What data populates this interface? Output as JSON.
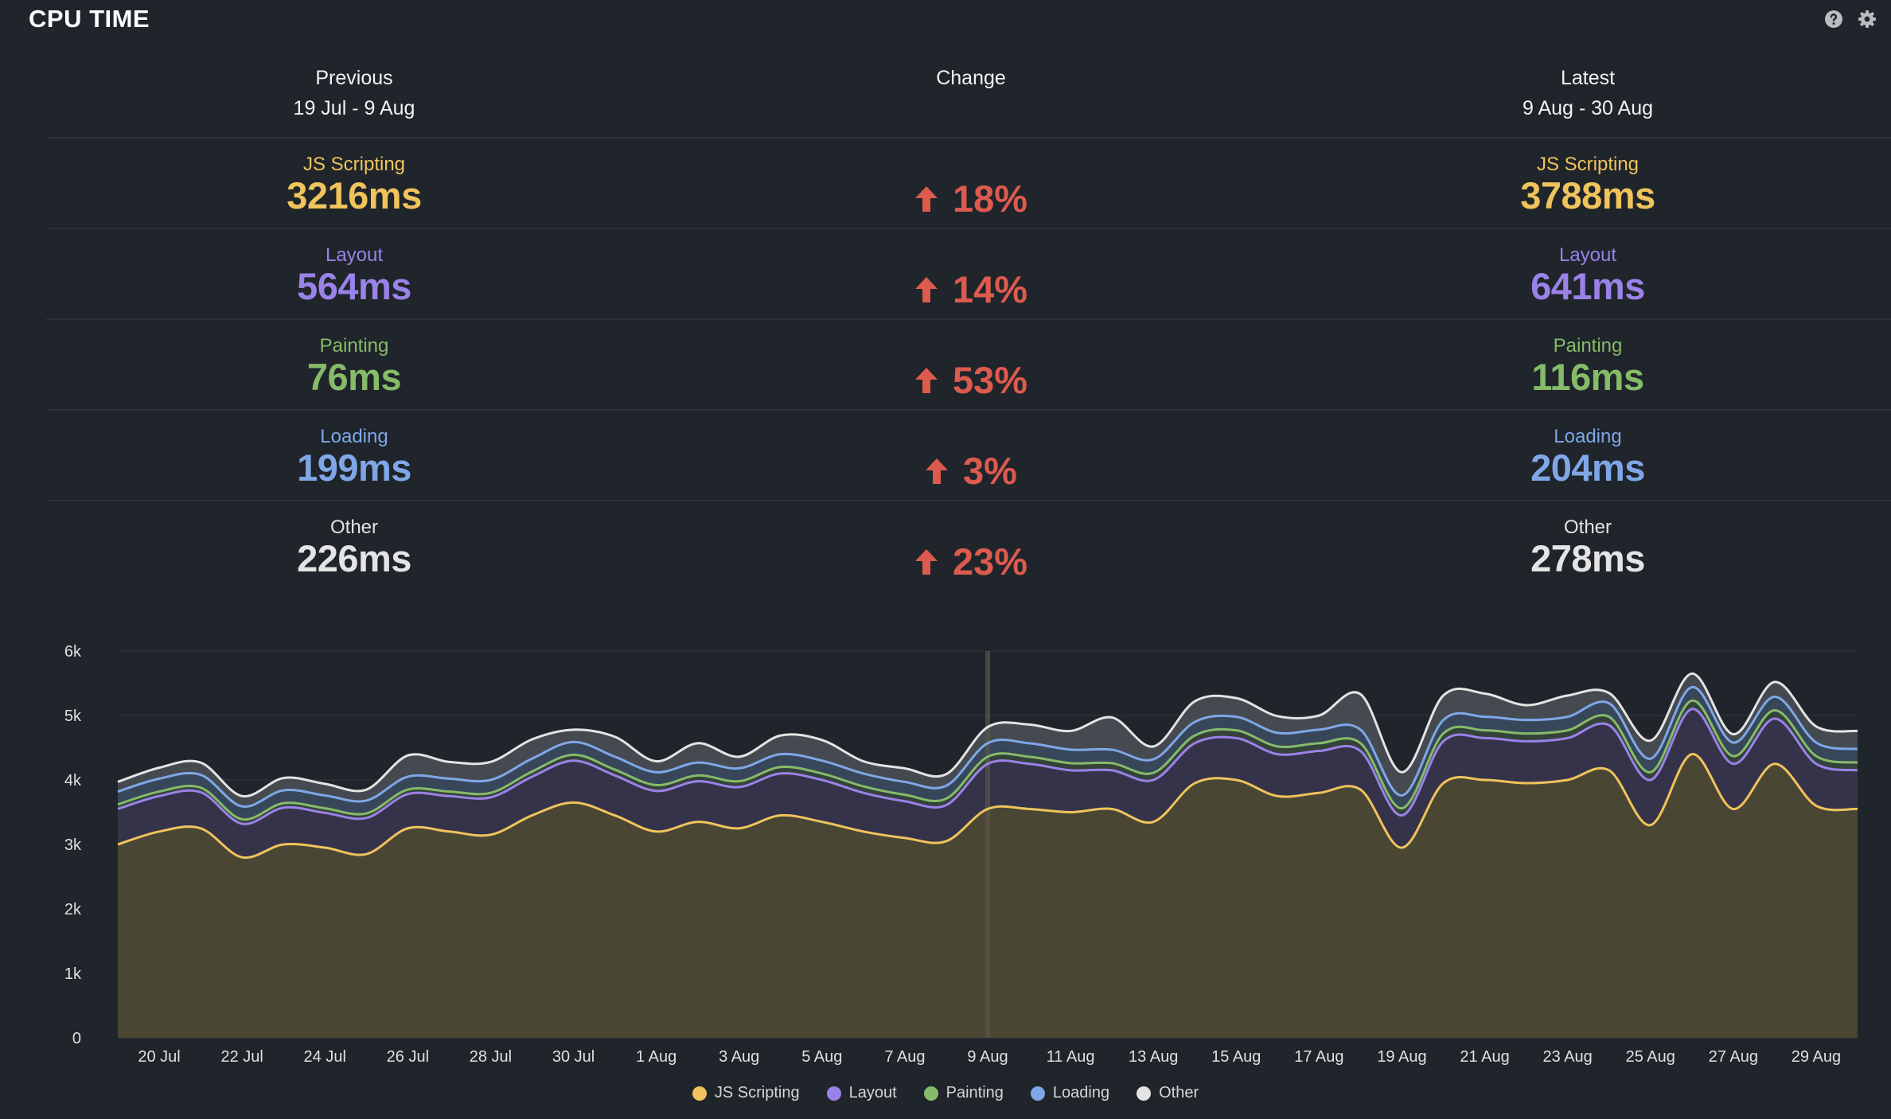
{
  "header": {
    "title": "CPU TIME",
    "help_icon": "help-icon",
    "settings_icon": "gear-icon"
  },
  "summary": {
    "previous_label": "Previous",
    "previous_range": "19 Jul - 9 Aug",
    "change_label": "Change",
    "latest_label": "Latest",
    "latest_range": "9 Aug - 30 Aug",
    "metrics": [
      {
        "name": "JS Scripting",
        "previous": "3216ms",
        "change": "18%",
        "latest": "3788ms",
        "color": "#f0c35c",
        "direction": "up"
      },
      {
        "name": "Layout",
        "previous": "564ms",
        "change": "14%",
        "latest": "641ms",
        "color": "#9a82e8",
        "direction": "up"
      },
      {
        "name": "Painting",
        "previous": "76ms",
        "change": "53%",
        "latest": "116ms",
        "color": "#86bb6a",
        "direction": "up"
      },
      {
        "name": "Loading",
        "previous": "199ms",
        "change": "3%",
        "latest": "204ms",
        "color": "#7fa7e8",
        "direction": "up"
      },
      {
        "name": "Other",
        "previous": "226ms",
        "change": "23%",
        "latest": "278ms",
        "color": "#e4e4e4",
        "direction": "up"
      }
    ],
    "change_color": "#dd5a4f"
  },
  "chart_data": {
    "type": "area",
    "stacked": true,
    "x": [
      "19 Jul",
      "20 Jul",
      "21 Jul",
      "22 Jul",
      "23 Jul",
      "24 Jul",
      "25 Jul",
      "26 Jul",
      "27 Jul",
      "28 Jul",
      "29 Jul",
      "30 Jul",
      "31 Jul",
      "1 Aug",
      "2 Aug",
      "3 Aug",
      "4 Aug",
      "5 Aug",
      "6 Aug",
      "7 Aug",
      "8 Aug",
      "9 Aug",
      "10 Aug",
      "11 Aug",
      "12 Aug",
      "13 Aug",
      "14 Aug",
      "15 Aug",
      "16 Aug",
      "17 Aug",
      "18 Aug",
      "19 Aug",
      "20 Aug",
      "21 Aug",
      "22 Aug",
      "23 Aug",
      "24 Aug",
      "25 Aug",
      "26 Aug",
      "27 Aug",
      "28 Aug",
      "29 Aug",
      "30 Aug"
    ],
    "x_tick_labels": [
      "20 Jul",
      "22 Jul",
      "24 Jul",
      "26 Jul",
      "28 Jul",
      "30 Jul",
      "1 Aug",
      "3 Aug",
      "5 Aug",
      "7 Aug",
      "9 Aug",
      "11 Aug",
      "13 Aug",
      "15 Aug",
      "17 Aug",
      "19 Aug",
      "21 Aug",
      "23 Aug",
      "25 Aug",
      "27 Aug",
      "29 Aug"
    ],
    "y_tick_labels": [
      "0",
      "1k",
      "2k",
      "3k",
      "4k",
      "5k",
      "6k"
    ],
    "ylim": [
      0,
      6000
    ],
    "period_divider_x": "9 Aug",
    "series": [
      {
        "name": "JS Scripting",
        "color": "#f0c35c",
        "values": [
          3000,
          3200,
          3250,
          2800,
          3000,
          2950,
          2850,
          3250,
          3200,
          3150,
          3450,
          3650,
          3450,
          3200,
          3350,
          3250,
          3450,
          3350,
          3200,
          3100,
          3050,
          3550,
          3550,
          3500,
          3550,
          3350,
          3950,
          4000,
          3750,
          3800,
          3850,
          2950,
          3950,
          4000,
          3950,
          4000,
          4150,
          3300,
          4400,
          3550,
          4250,
          3600,
          3550
        ]
      },
      {
        "name": "Layout",
        "color": "#9a82e8",
        "values": [
          550,
          550,
          560,
          520,
          570,
          540,
          560,
          530,
          550,
          580,
          600,
          650,
          620,
          630,
          630,
          640,
          650,
          650,
          600,
          570,
          560,
          700,
          700,
          650,
          600,
          650,
          620,
          650,
          650,
          650,
          600,
          500,
          650,
          650,
          650,
          650,
          700,
          700,
          700,
          700,
          700,
          650,
          600
        ]
      },
      {
        "name": "Painting",
        "color": "#86bb6a",
        "values": [
          70,
          70,
          70,
          70,
          70,
          70,
          70,
          70,
          70,
          70,
          80,
          90,
          90,
          90,
          90,
          90,
          100,
          100,
          100,
          100,
          100,
          110,
          110,
          110,
          110,
          110,
          120,
          120,
          120,
          120,
          120,
          110,
          120,
          120,
          120,
          120,
          130,
          120,
          130,
          120,
          130,
          120,
          120
        ]
      },
      {
        "name": "Loading",
        "color": "#7fa7e8",
        "values": [
          200,
          200,
          200,
          200,
          200,
          200,
          200,
          200,
          200,
          200,
          200,
          200,
          200,
          200,
          200,
          200,
          200,
          200,
          200,
          200,
          200,
          210,
          210,
          210,
          210,
          210,
          210,
          210,
          210,
          210,
          210,
          200,
          210,
          210,
          210,
          210,
          210,
          210,
          210,
          210,
          210,
          210,
          210
        ]
      },
      {
        "name": "Other",
        "color": "#e4e4e4",
        "values": [
          150,
          170,
          190,
          160,
          190,
          180,
          170,
          330,
          260,
          280,
          300,
          190,
          310,
          170,
          300,
          180,
          290,
          320,
          190,
          210,
          180,
          250,
          290,
          290,
          500,
          200,
          320,
          290,
          260,
          220,
          550,
          360,
          380,
          360,
          230,
          330,
          160,
          280,
          210,
          130,
          230,
          250,
          280
        ]
      }
    ]
  },
  "legend": [
    {
      "label": "JS Scripting",
      "color": "#f0c35c"
    },
    {
      "label": "Layout",
      "color": "#9a82e8"
    },
    {
      "label": "Painting",
      "color": "#86bb6a"
    },
    {
      "label": "Loading",
      "color": "#7fa7e8"
    },
    {
      "label": "Other",
      "color": "#e4e4e4"
    }
  ]
}
